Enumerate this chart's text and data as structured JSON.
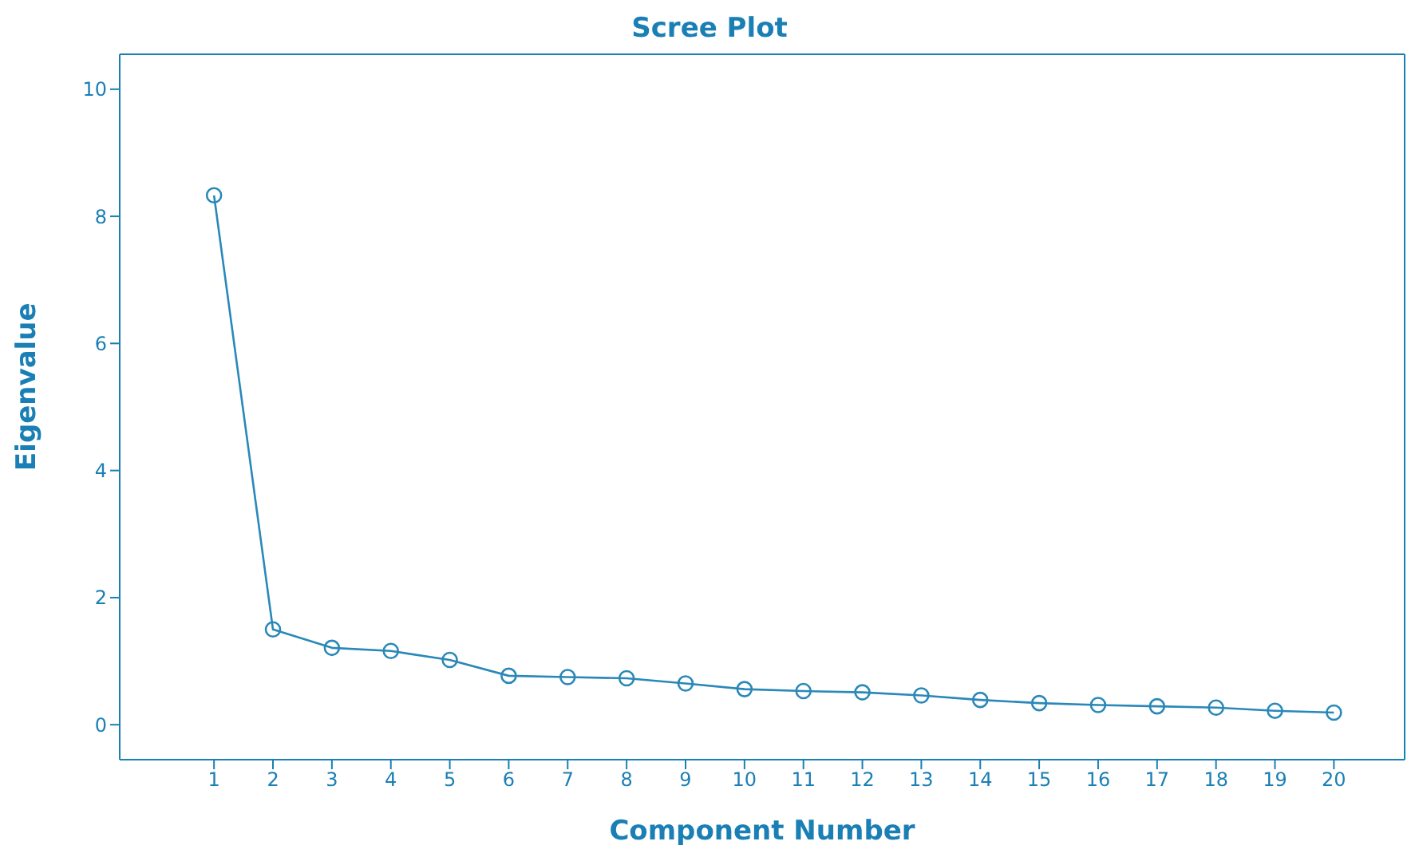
{
  "chart_data": {
    "type": "line",
    "title": "Scree Plot",
    "xlabel": "Component Number",
    "ylabel": "Eigenvalue",
    "x": [
      1,
      2,
      3,
      4,
      5,
      6,
      7,
      8,
      9,
      10,
      11,
      12,
      13,
      14,
      15,
      16,
      17,
      18,
      19,
      20
    ],
    "series": [
      {
        "color": "#2a88b8",
        "values": [
          8.33,
          1.5,
          1.21,
          1.16,
          1.02,
          0.77,
          0.75,
          0.73,
          0.65,
          0.56,
          0.53,
          0.51,
          0.46,
          0.39,
          0.34,
          0.31,
          0.29,
          0.27,
          0.22,
          0.19
        ]
      }
    ],
    "xlim": [
      -0.6,
      21.2
    ],
    "xticks": [
      1,
      2,
      3,
      4,
      5,
      6,
      7,
      8,
      9,
      10,
      11,
      12,
      13,
      14,
      15,
      16,
      17,
      18,
      19,
      20
    ],
    "ylim": [
      -0.55,
      10.55
    ],
    "yticks": [
      0,
      2,
      4,
      6,
      8,
      10
    ],
    "grid": false,
    "legend": false,
    "marker": "circle",
    "line_style": "solid"
  }
}
